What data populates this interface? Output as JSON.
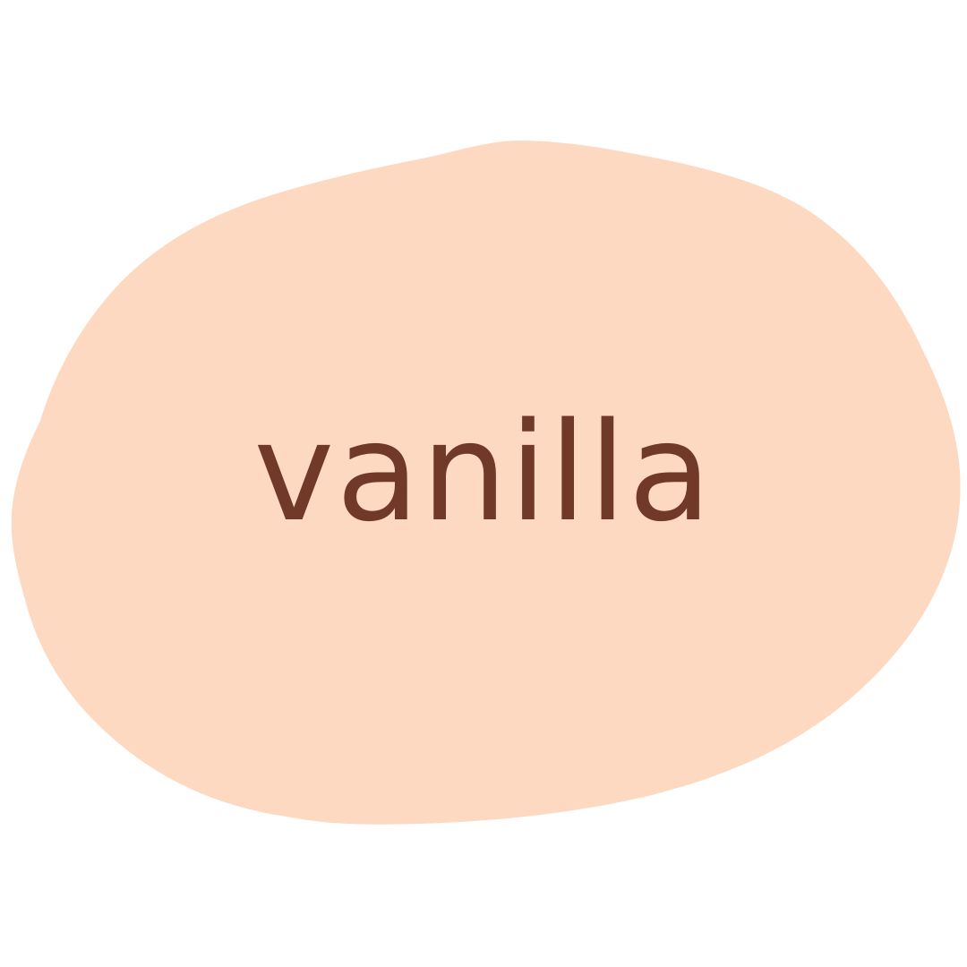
{
  "label": {
    "text": "vanilla"
  },
  "colors": {
    "background": "#ffffff",
    "blob_fill": "#fdd9c2",
    "text": "#713a28"
  }
}
